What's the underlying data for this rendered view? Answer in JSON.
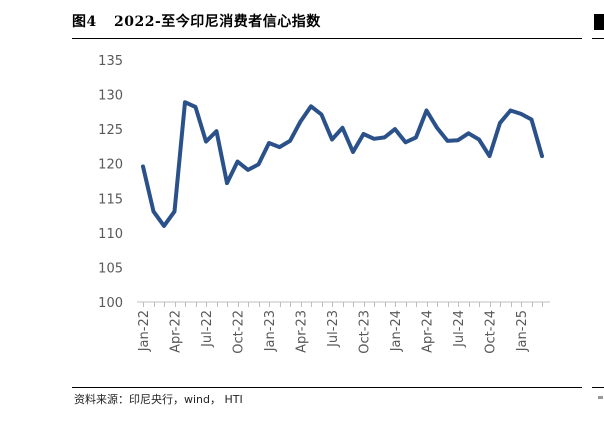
{
  "figure": {
    "label": "图4",
    "title": "2022-至今印尼消费者信心指数",
    "source": "资料来源：印尼央行，wind，  HTI"
  },
  "chart_data": {
    "type": "line",
    "title": "2022-至今印尼消费者信心指数",
    "xlabel": "",
    "ylabel": "",
    "ylim": [
      100,
      135
    ],
    "yticks": [
      100,
      105,
      110,
      115,
      120,
      125,
      130,
      135
    ],
    "grid": false,
    "legend": "none",
    "x_tick_labels": [
      "Jan-22",
      "Apr-22",
      "Jul-22",
      "Oct-22",
      "Jan-23",
      "Apr-23",
      "Jul-23",
      "Oct-23",
      "Jan-24",
      "Apr-24",
      "Jul-24",
      "Oct-24",
      "Jan-25"
    ],
    "x_tick_step": 3,
    "line_color": "#2a5189",
    "series": [
      {
        "values": [
          119.6,
          113.1,
          111.0,
          113.1,
          128.9,
          128.2,
          123.2,
          124.7,
          117.2,
          120.3,
          119.1,
          119.9,
          123.0,
          122.4,
          123.3,
          126.1,
          128.3,
          127.1,
          123.5,
          125.2,
          121.7,
          124.3,
          123.6,
          123.8,
          125.0,
          123.1,
          123.8,
          127.7,
          125.2,
          123.3,
          123.4,
          124.4,
          123.5,
          121.1,
          125.9,
          127.7,
          127.2,
          126.4,
          121.1
        ]
      }
    ]
  }
}
